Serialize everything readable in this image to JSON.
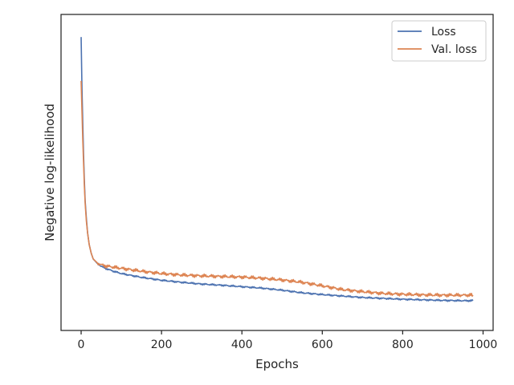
{
  "chart_data": {
    "type": "line",
    "xlabel": "Epochs",
    "ylabel": "Negative log-likelihood",
    "xlim": [
      -50,
      1025
    ],
    "ylim": [
      0.0,
      1.0
    ],
    "x_ticks": [
      0,
      200,
      400,
      600,
      800,
      1000
    ],
    "y_ticks": [],
    "grid": false,
    "legend_position": "top-right",
    "series": [
      {
        "name": "Loss",
        "color": "#4c72b0",
        "x": [
          0,
          2,
          4,
          6,
          8,
          10,
          13,
          16,
          20,
          25,
          30,
          40,
          50,
          60,
          80,
          100,
          150,
          200,
          250,
          300,
          350,
          400,
          450,
          500,
          550,
          600,
          650,
          700,
          750,
          800,
          850,
          900,
          950,
          975
        ],
        "y": [
          0.95,
          0.78,
          0.66,
          0.55,
          0.46,
          0.39,
          0.33,
          0.28,
          0.24,
          0.21,
          0.19,
          0.175,
          0.165,
          0.158,
          0.148,
          0.14,
          0.127,
          0.117,
          0.11,
          0.104,
          0.1,
          0.095,
          0.09,
          0.083,
          0.074,
          0.068,
          0.063,
          0.058,
          0.055,
          0.052,
          0.05,
          0.048,
          0.047,
          0.047
        ]
      },
      {
        "name": "Val. loss",
        "color": "#dd8452",
        "x": [
          0,
          2,
          4,
          6,
          8,
          10,
          13,
          16,
          20,
          25,
          30,
          40,
          50,
          60,
          80,
          100,
          150,
          200,
          250,
          300,
          350,
          400,
          450,
          500,
          550,
          600,
          650,
          700,
          750,
          800,
          850,
          900,
          950,
          975
        ],
        "y": [
          0.8,
          0.7,
          0.6,
          0.52,
          0.44,
          0.38,
          0.32,
          0.28,
          0.24,
          0.21,
          0.19,
          0.177,
          0.17,
          0.166,
          0.162,
          0.158,
          0.148,
          0.14,
          0.135,
          0.132,
          0.13,
          0.128,
          0.124,
          0.118,
          0.11,
          0.098,
          0.085,
          0.078,
          0.072,
          0.069,
          0.067,
          0.066,
          0.066,
          0.066
        ]
      }
    ]
  }
}
